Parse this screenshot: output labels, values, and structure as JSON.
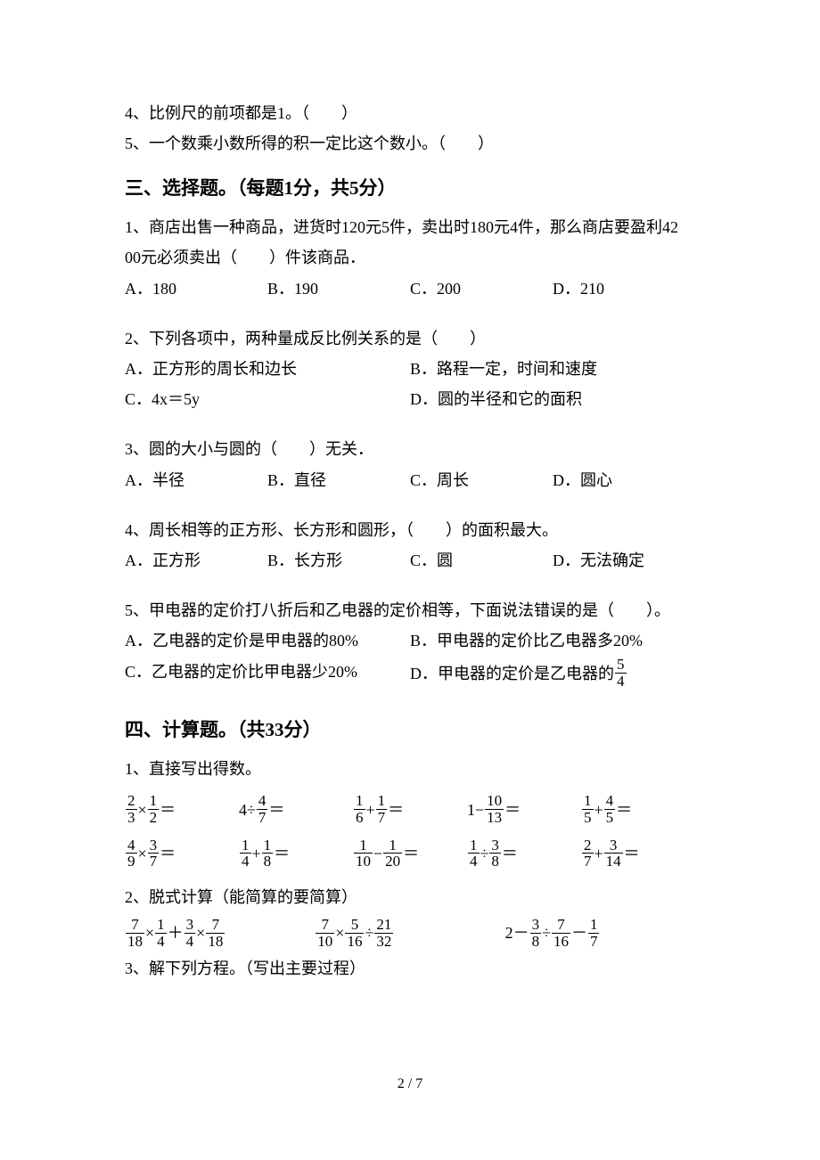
{
  "colors": {
    "text": "#000000",
    "bg": "#ffffff",
    "frac_rule": "#000000"
  },
  "typography": {
    "body_fontsize_pt": 14,
    "heading_fontsize_pt": 16,
    "font_family": "SimSun"
  },
  "page_number": "2 / 7",
  "sec2": {
    "q4": "4、比例尺的前项都是1。（　　）",
    "q5": "5、一个数乘小数所得的积一定比这个数小。（　　）"
  },
  "sec3": {
    "title": "三、选择题。（每题1分，共5分）",
    "q1": {
      "stem_a": "1、商店出售一种商品，进货时120元5件，卖出时180元4件，那么商店要盈利42",
      "stem_b": "00元必须卖出（　　）件该商品．",
      "optA": "A．180",
      "optB": "B．190",
      "optC": "C．200",
      "optD": "D．210"
    },
    "q2": {
      "stem": "2、下列各项中，两种量成反比例关系的是（　　）",
      "optA": "A．正方形的周长和边长",
      "optB": "B．路程一定，时间和速度",
      "optC": "C．4x＝5y",
      "optD": "D．圆的半径和它的面积"
    },
    "q3": {
      "stem": "3、圆的大小与圆的（　　）无关．",
      "optA": "A．半径",
      "optB": "B．直径",
      "optC": "C．周长",
      "optD": "D．圆心"
    },
    "q4": {
      "stem": "4、周长相等的正方形、长方形和圆形，（　　）的面积最大。",
      "optA": "A．正方形",
      "optB": "B．长方形",
      "optC": "C．圆",
      "optD": "D．无法确定"
    },
    "q5": {
      "stem": "5、甲电器的定价打八折后和乙电器的定价相等，下面说法错误的是（　　）。",
      "optA": "A．乙电器的定价是甲电器的80%",
      "optB": "B．甲电器的定价比乙电器多20%",
      "optC": "C．乙电器的定价比甲电器少20%",
      "optD_prefix": "D．甲电器的定价是乙电器的",
      "optD_num": "5",
      "optD_den": "4"
    }
  },
  "sec4": {
    "title": "四、计算题。（共33分）",
    "q1_label": "1、直接写出得数。",
    "row1": [
      {
        "type": "fracOpFracEq",
        "a_n": "2",
        "a_d": "3",
        "op": "×",
        "b_n": "1",
        "b_d": "2"
      },
      {
        "type": "numOpFracEq",
        "a": "4",
        "op": "÷",
        "b_n": "4",
        "b_d": "7"
      },
      {
        "type": "fracOpFracEq",
        "a_n": "1",
        "a_d": "6",
        "op": "+",
        "b_n": "1",
        "b_d": "7"
      },
      {
        "type": "numOpFracEq",
        "a": "1",
        "op": "−",
        "b_n": "10",
        "b_d": "13"
      },
      {
        "type": "fracOpFracEq",
        "a_n": "1",
        "a_d": "5",
        "op": "+",
        "b_n": "4",
        "b_d": "5"
      }
    ],
    "row2": [
      {
        "type": "fracOpFracEq",
        "a_n": "4",
        "a_d": "9",
        "op": "×",
        "b_n": "3",
        "b_d": "7"
      },
      {
        "type": "fracOpFracEq",
        "a_n": "1",
        "a_d": "4",
        "op": "+",
        "b_n": "1",
        "b_d": "8"
      },
      {
        "type": "fracOpFracEq",
        "a_n": "1",
        "a_d": "10",
        "op": "−",
        "b_n": "1",
        "b_d": "20"
      },
      {
        "type": "fracOpFracEq",
        "a_n": "1",
        "a_d": "4",
        "op": "÷",
        "b_n": "3",
        "b_d": "8"
      },
      {
        "type": "fracOpFracEq",
        "a_n": "2",
        "a_d": "7",
        "op": "+",
        "b_n": "3",
        "b_d": "14"
      }
    ],
    "q2_label": "2、脱式计算（能简算的要简算）",
    "q2_items": [
      {
        "parts": [
          {
            "f": [
              "7",
              "18"
            ]
          },
          {
            "t": "×"
          },
          {
            "f": [
              "1",
              "4"
            ]
          },
          {
            "t": "＋"
          },
          {
            "f": [
              "3",
              "4"
            ]
          },
          {
            "t": "×"
          },
          {
            "f": [
              "7",
              "18"
            ]
          }
        ]
      },
      {
        "parts": [
          {
            "f": [
              "7",
              "10"
            ]
          },
          {
            "t": "×"
          },
          {
            "f": [
              "5",
              "16"
            ]
          },
          {
            "t": "÷"
          },
          {
            "f": [
              "21",
              "32"
            ]
          }
        ]
      },
      {
        "parts": [
          {
            "t": "2－"
          },
          {
            "f": [
              "3",
              "8"
            ]
          },
          {
            "t": "÷"
          },
          {
            "f": [
              "7",
              "16"
            ]
          },
          {
            "t": "－"
          },
          {
            "f": [
              "1",
              "7"
            ]
          }
        ]
      }
    ],
    "q3_label": "3、解下列方程。（写出主要过程）"
  }
}
